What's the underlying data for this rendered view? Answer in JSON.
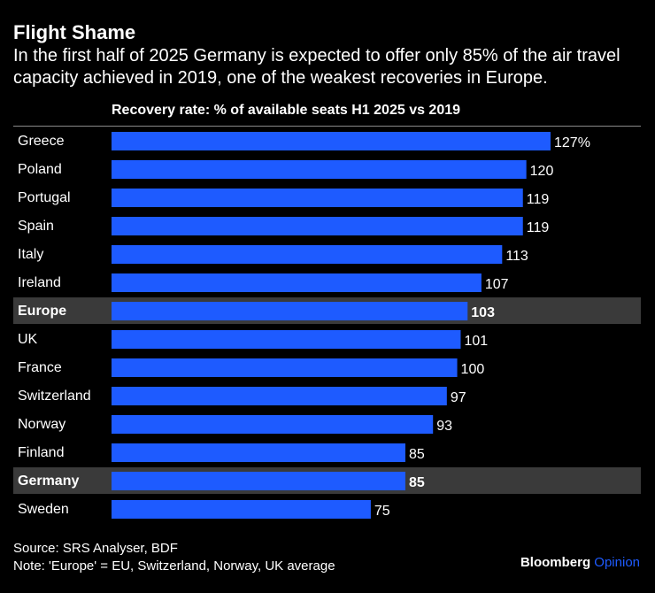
{
  "header": {
    "title": "Flight Shame",
    "subtitle": "In the first half of 2025 Germany is expected to offer only 85% of the air travel capacity achieved in 2019, one of the weakest recoveries in Europe."
  },
  "chart_data": {
    "type": "bar",
    "orientation": "horizontal",
    "title": "Recovery rate: % of available seats H1 2025 vs 2019",
    "categories": [
      "Greece",
      "Poland",
      "Portugal",
      "Spain",
      "Italy",
      "Ireland",
      "Europe",
      "UK",
      "France",
      "Switzerland",
      "Norway",
      "Finland",
      "Germany",
      "Sweden"
    ],
    "values": [
      127,
      120,
      119,
      119,
      113,
      107,
      103,
      101,
      100,
      97,
      93,
      85,
      85,
      75
    ],
    "labels": [
      "127%",
      "120",
      "119",
      "119",
      "113",
      "107",
      "103",
      "101",
      "100",
      "97",
      "93",
      "85",
      "85",
      "75"
    ],
    "highlighted": [
      "Europe",
      "Germany"
    ],
    "xlim": [
      0,
      127
    ],
    "grid": false,
    "xlabel": "",
    "ylabel": ""
  },
  "colors": {
    "bar": "#1e5bff",
    "highlight_row": "#3a3a3a",
    "background": "#000000",
    "text": "#ffffff",
    "brand_accent": "#1e5bff"
  },
  "footer": {
    "source": "Source: SRS Analyser, BDF",
    "note": "Note: 'Europe' = EU, Switzerland, Norway, UK average",
    "brand_name": "Bloomberg",
    "brand_suffix": "Opinion"
  }
}
